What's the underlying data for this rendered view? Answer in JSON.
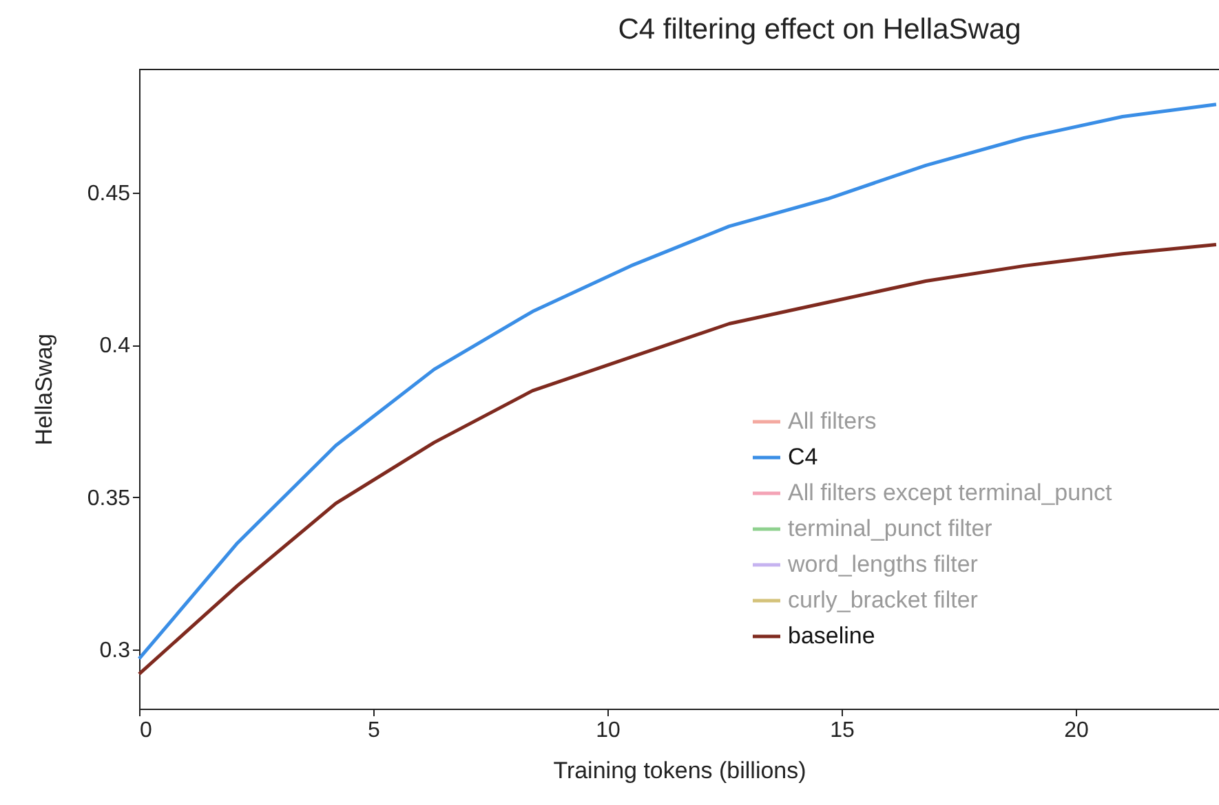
{
  "chart_data": {
    "type": "line",
    "title": "C4 filtering effect on HellaSwag",
    "xlabel": "Training tokens (billions)",
    "ylabel": "HellaSwag",
    "x": [
      0,
      2.1,
      4.2,
      6.3,
      8.4,
      10.5,
      12.6,
      14.7,
      16.8,
      18.9,
      21,
      23
    ],
    "series": [
      {
        "name": "All filters",
        "color": "#f4a9a0",
        "values": [
          null,
          null,
          null,
          null,
          null,
          null,
          null,
          null,
          null,
          null,
          null,
          null
        ]
      },
      {
        "name": "C4",
        "color": "#3a8ee6",
        "values": [
          0.297,
          0.335,
          0.367,
          0.392,
          0.411,
          0.426,
          0.439,
          0.448,
          0.459,
          0.468,
          0.475,
          0.479
        ]
      },
      {
        "name": "All filters except terminal_punct",
        "color": "#f4a3b5",
        "values": [
          null,
          null,
          null,
          null,
          null,
          null,
          null,
          null,
          null,
          null,
          null,
          null
        ]
      },
      {
        "name": "terminal_punct filter",
        "color": "#8fd18f",
        "values": [
          null,
          null,
          null,
          null,
          null,
          null,
          null,
          null,
          null,
          null,
          null,
          null
        ]
      },
      {
        "name": "word_lengths filter",
        "color": "#c6b3f0",
        "values": [
          null,
          null,
          null,
          null,
          null,
          null,
          null,
          null,
          null,
          null,
          null,
          null
        ]
      },
      {
        "name": "curly_bracket filter",
        "color": "#d4c27a",
        "values": [
          null,
          null,
          null,
          null,
          null,
          null,
          null,
          null,
          null,
          null,
          null,
          null
        ]
      },
      {
        "name": "baseline",
        "color": "#7f2a1f",
        "values": [
          0.292,
          0.321,
          0.348,
          0.368,
          0.385,
          0.396,
          0.407,
          0.414,
          0.421,
          0.426,
          0.43,
          0.433
        ]
      }
    ],
    "xlim": [
      0,
      23.06
    ],
    "xticks": [
      0,
      5,
      10,
      15,
      20
    ],
    "ylim": [
      0.2806,
      0.4907
    ],
    "yticks": [
      0.3,
      0.35,
      0.4,
      0.45
    ],
    "grid": false,
    "legend": "bottom right",
    "line_style": "solid",
    "marker": "none"
  }
}
